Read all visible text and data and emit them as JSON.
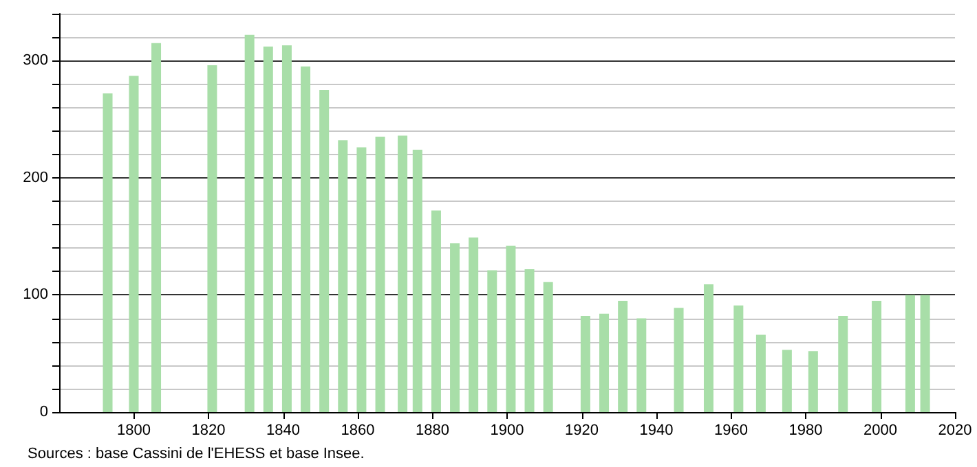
{
  "chart_data": {
    "type": "bar",
    "annotations": [
      "Sources : base Cassini de l'EHESS et base Insee."
    ],
    "x": [
      1793,
      1800,
      1806,
      1821,
      1831,
      1836,
      1841,
      1846,
      1851,
      1856,
      1861,
      1866,
      1872,
      1876,
      1881,
      1886,
      1891,
      1896,
      1901,
      1906,
      1911,
      1921,
      1926,
      1931,
      1936,
      1946,
      1954,
      1962,
      1968,
      1975,
      1982,
      1990,
      1999,
      2008,
      2012
    ],
    "values": [
      272,
      287,
      315,
      296,
      322,
      312,
      313,
      295,
      275,
      232,
      226,
      235,
      236,
      224,
      172,
      144,
      149,
      121,
      142,
      122,
      111,
      82,
      84,
      95,
      80,
      89,
      109,
      91,
      66,
      53,
      52,
      82,
      95,
      100,
      100
    ],
    "color": "#a8dea8",
    "xlim": [
      1780,
      2020
    ],
    "xticks": [
      1800,
      1820,
      1840,
      1860,
      1880,
      1900,
      1920,
      1940,
      1960,
      1980,
      2000,
      2020
    ],
    "ylim": [
      0,
      340
    ],
    "yticks": [
      0,
      {
        "value": 20,
        "label": null
      },
      {
        "value": 40,
        "label": null
      },
      {
        "value": 60,
        "label": null
      },
      {
        "value": 80,
        "label": null
      },
      100,
      {
        "value": 120,
        "label": null
      },
      {
        "value": 140,
        "label": null
      },
      {
        "value": 160,
        "label": null
      },
      {
        "value": 180,
        "label": null
      },
      200,
      {
        "value": 220,
        "label": null
      },
      {
        "value": 240,
        "label": null
      },
      {
        "value": 260,
        "label": null
      },
      {
        "value": 280,
        "label": null
      },
      300,
      {
        "value": 320,
        "label": null
      },
      {
        "value": 340,
        "label": null
      }
    ],
    "grid": "y"
  }
}
